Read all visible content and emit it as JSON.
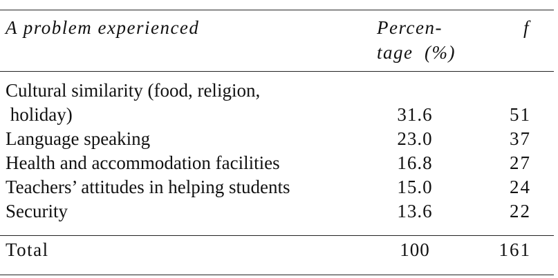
{
  "table": {
    "header": {
      "problem": "A problem experienced",
      "percentage": [
        "Percen-",
        "tage  (%)"
      ],
      "f": "f"
    },
    "rows": [
      {
        "problem": [
          "Cultural similarity (food, religion,",
          " holiday)"
        ],
        "percentage": "31.6",
        "f": "51"
      },
      {
        "problem": [
          "Language speaking"
        ],
        "percentage": "23.0",
        "f": "37"
      },
      {
        "problem": [
          "Health and accommodation facilities"
        ],
        "percentage": "16.8",
        "f": "27"
      },
      {
        "problem": [
          "Teachers’ attitudes in helping students"
        ],
        "percentage": "15.0",
        "f": "24"
      },
      {
        "problem": [
          "Security"
        ],
        "percentage": "13.6",
        "f": "22"
      }
    ],
    "total": {
      "label": "Total",
      "percentage": "100",
      "f": "161"
    }
  }
}
